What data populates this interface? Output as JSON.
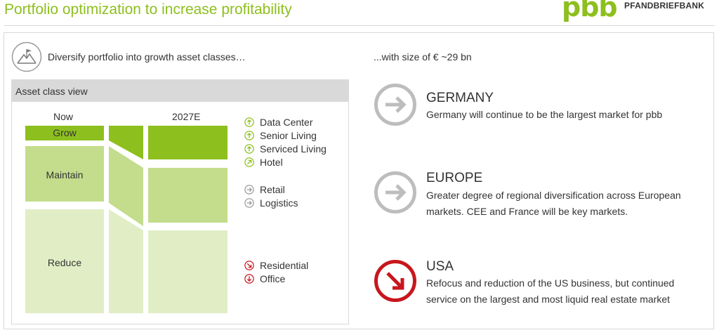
{
  "header": {
    "title": "Portfolio optimization to increase profitability",
    "logo_mark": "pbb",
    "logo_text": "PFANDBRIEFBANK"
  },
  "left": {
    "intro": "Diversify portfolio into growth asset classes…",
    "asset_view_title": "Asset class view",
    "col_now": "Now",
    "col_2027": "2027E",
    "seg_grow": "Grow",
    "seg_maintain": "Maintain",
    "seg_reduce": "Reduce",
    "legend": [
      {
        "label": "Data Center",
        "icon": "arrow-up-green-icon"
      },
      {
        "label": "Senior Living",
        "icon": "arrow-up-green-icon"
      },
      {
        "label": "Serviced Living",
        "icon": "arrow-up-green-icon"
      },
      {
        "label": "Hotel",
        "icon": "arrow-up-right-green-icon"
      },
      {
        "label": "Retail",
        "icon": "arrow-right-grey-icon"
      },
      {
        "label": "Logistics",
        "icon": "arrow-right-grey-icon"
      },
      {
        "label": "Residential",
        "icon": "arrow-down-right-red-icon"
      },
      {
        "label": "Office",
        "icon": "arrow-down-red-icon"
      }
    ]
  },
  "right": {
    "intro": "...with size of € ~29 bn",
    "regions": [
      {
        "heading": "GERMANY",
        "text": "Germany will continue to be the largest market for pbb",
        "icon": "arrow-right-grey-icon"
      },
      {
        "heading": "EUROPE",
        "text": "Greater degree of regional diversification across European markets. CEE and France will be key markets.",
        "icon": "arrow-right-grey-icon"
      },
      {
        "heading": "USA",
        "text": "Refocus and reduction of the US business, but continued service on the largest and most liquid real estate market",
        "icon": "arrow-down-right-red-icon"
      }
    ]
  },
  "colors": {
    "green": "#8dbf1e",
    "red": "#c8161d",
    "grey": "#bdbdbd"
  }
}
